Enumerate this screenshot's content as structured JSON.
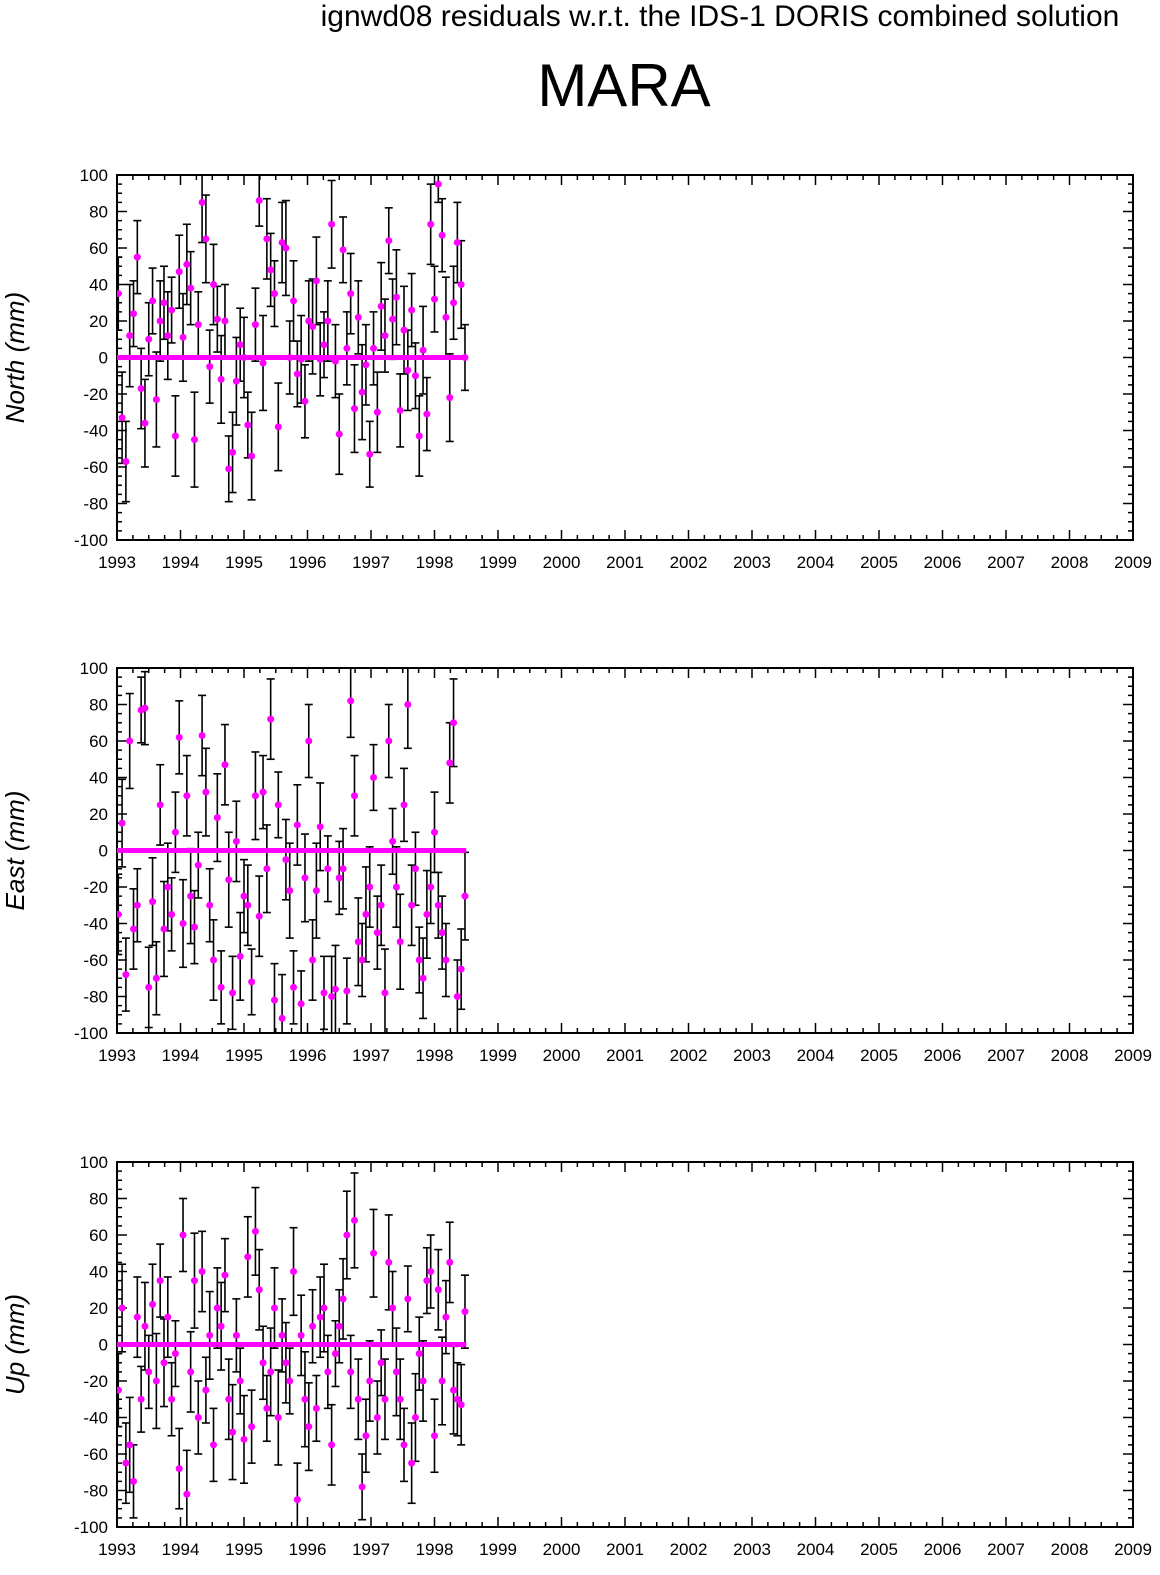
{
  "figure": {
    "title": "ignwd08 residuals w.r.t. the IDS-1 DORIS combined solution",
    "station": "MARA"
  },
  "colors": {
    "points": "#ff00ff",
    "errorbars": "#000000",
    "frame": "#000000"
  },
  "chart_data": [
    {
      "type": "scatter",
      "ylabel": "North (mm)",
      "xlim": [
        1993,
        2009
      ],
      "ylim": [
        -100,
        100
      ],
      "x_ticks": [
        "1993",
        "1994",
        "1995",
        "1996",
        "1997",
        "1998",
        "1999",
        "2000",
        "2001",
        "2002",
        "2003",
        "2004",
        "2005",
        "2006",
        "2007",
        "2008",
        "2009"
      ],
      "y_ticks": [
        "100",
        "80",
        "60",
        "40",
        "20",
        "0",
        "-20",
        "-40",
        "-60",
        "-80",
        "-100"
      ],
      "grid": false,
      "zero_line": {
        "x": [
          1993.0,
          1998.5
        ],
        "y": 0
      },
      "series": [
        {
          "x": [
            1993.02,
            1993.08,
            1993.14,
            1993.2,
            1993.26,
            1993.32,
            1993.38,
            1993.44,
            1993.5,
            1993.56,
            1993.62,
            1993.68,
            1993.74,
            1993.8,
            1993.86,
            1993.92,
            1993.98,
            1994.04,
            1994.1,
            1994.16,
            1994.22,
            1994.28,
            1994.34,
            1994.4,
            1994.46,
            1994.52,
            1994.58,
            1994.64,
            1994.7,
            1994.76,
            1994.82,
            1994.88,
            1994.94,
            1995.0,
            1995.06,
            1995.12,
            1995.18,
            1995.24,
            1995.3,
            1995.36,
            1995.42,
            1995.48,
            1995.54,
            1995.6,
            1995.66,
            1995.72,
            1995.78,
            1995.84,
            1995.9,
            1995.96,
            1996.02,
            1996.08,
            1996.14,
            1996.2,
            1996.26,
            1996.32,
            1996.38,
            1996.44,
            1996.5,
            1996.56,
            1996.62,
            1996.68,
            1996.74,
            1996.8,
            1996.86,
            1996.92,
            1996.98,
            1997.04,
            1997.1,
            1997.16,
            1997.22,
            1997.28,
            1997.34,
            1997.4,
            1997.46,
            1997.52,
            1997.58,
            1997.64,
            1997.7,
            1997.76,
            1997.82,
            1997.88,
            1997.94,
            1998.0,
            1998.06,
            1998.12,
            1998.18,
            1998.24,
            1998.3,
            1998.36,
            1998.42,
            1998.48
          ],
          "y": [
            35,
            -33,
            -57,
            12,
            24,
            55,
            -17,
            -36,
            10,
            31,
            -23,
            20,
            30,
            12,
            26,
            -43,
            47,
            11,
            51,
            38,
            -45,
            18,
            85,
            65,
            -5,
            40,
            21,
            -12,
            20,
            -61,
            -52,
            -13,
            7,
            0,
            -37,
            -54,
            18,
            86,
            -3,
            65,
            48,
            35,
            -38,
            63,
            60,
            0,
            31,
            -9,
            -1,
            -24,
            20,
            17,
            42,
            -1,
            7,
            20,
            73,
            -2,
            -42,
            59,
            5,
            35,
            -28,
            22,
            -19,
            -4,
            -53,
            5,
            -30,
            28,
            12,
            64,
            21,
            33,
            -29,
            15,
            -7,
            26,
            -10,
            -43,
            4,
            -31,
            73,
            32,
            95,
            67,
            22,
            -22,
            30,
            63,
            40,
            0
          ],
          "err": [
            20,
            25,
            22,
            28,
            18,
            20,
            22,
            24,
            20,
            18,
            26,
            22,
            20,
            24,
            18,
            22,
            20,
            24,
            22,
            20,
            26,
            18,
            22,
            24,
            20,
            22,
            18,
            24,
            20,
            18,
            22,
            24,
            20,
            22,
            18,
            24,
            20,
            14,
            26,
            22,
            20,
            18,
            24,
            22,
            26,
            20,
            22,
            18,
            24,
            20,
            22,
            26,
            24,
            20,
            18,
            22,
            24,
            20,
            22,
            18,
            20,
            22,
            24,
            20,
            26,
            22,
            18,
            20,
            22,
            24,
            20,
            18,
            22,
            26,
            20,
            24,
            22,
            20,
            18,
            22,
            24,
            20,
            22,
            18,
            10,
            20,
            22,
            24,
            20,
            22,
            24,
            18
          ]
        }
      ]
    },
    {
      "type": "scatter",
      "ylabel": "East (mm)",
      "xlim": [
        1993,
        2009
      ],
      "ylim": [
        -100,
        100
      ],
      "x_ticks": [
        "1993",
        "1994",
        "1995",
        "1996",
        "1997",
        "1998",
        "1999",
        "2000",
        "2001",
        "2002",
        "2003",
        "2004",
        "2005",
        "2006",
        "2007",
        "2008",
        "2009"
      ],
      "y_ticks": [
        "100",
        "80",
        "60",
        "40",
        "20",
        "0",
        "-20",
        "-40",
        "-60",
        "-80",
        "-100"
      ],
      "grid": false,
      "zero_line": {
        "x": [
          1993.0,
          1998.5
        ],
        "y": 0
      },
      "series": [
        {
          "x": [
            1993.02,
            1993.08,
            1993.14,
            1993.2,
            1993.26,
            1993.32,
            1993.38,
            1993.44,
            1993.5,
            1993.56,
            1993.62,
            1993.68,
            1993.74,
            1993.8,
            1993.86,
            1993.92,
            1993.98,
            1994.04,
            1994.1,
            1994.16,
            1994.22,
            1994.28,
            1994.34,
            1994.4,
            1994.46,
            1994.52,
            1994.58,
            1994.64,
            1994.7,
            1994.76,
            1994.82,
            1994.88,
            1994.94,
            1995.0,
            1995.06,
            1995.12,
            1995.18,
            1995.24,
            1995.3,
            1995.36,
            1995.42,
            1995.48,
            1995.54,
            1995.6,
            1995.66,
            1995.72,
            1995.78,
            1995.84,
            1995.9,
            1995.96,
            1996.02,
            1996.08,
            1996.14,
            1996.2,
            1996.26,
            1996.32,
            1996.38,
            1996.44,
            1996.5,
            1996.56,
            1996.62,
            1996.68,
            1996.74,
            1996.8,
            1996.86,
            1996.92,
            1996.98,
            1997.04,
            1997.1,
            1997.16,
            1997.22,
            1997.28,
            1997.34,
            1997.4,
            1997.46,
            1997.52,
            1997.58,
            1997.64,
            1997.7,
            1997.76,
            1997.82,
            1997.88,
            1997.94,
            1998.0,
            1998.06,
            1998.12,
            1998.18,
            1998.24,
            1998.3,
            1998.36,
            1998.42,
            1998.48
          ],
          "y": [
            -35,
            15,
            -68,
            60,
            -43,
            -30,
            77,
            78,
            -75,
            -28,
            -70,
            25,
            -43,
            -20,
            -35,
            10,
            62,
            -40,
            30,
            -25,
            -42,
            -8,
            63,
            32,
            -30,
            -60,
            18,
            -75,
            47,
            -16,
            -78,
            5,
            -58,
            -25,
            -30,
            -72,
            30,
            -36,
            32,
            -10,
            72,
            -82,
            25,
            -92,
            -5,
            -22,
            -75,
            14,
            -84,
            -15,
            60,
            -60,
            -22,
            13,
            -78,
            -10,
            -80,
            -76,
            -15,
            -10,
            -77,
            82,
            30,
            -50,
            -60,
            -35,
            -20,
            40,
            -45,
            -30,
            -78,
            60,
            5,
            -20,
            -50,
            25,
            80,
            -30,
            -10,
            -60,
            -70,
            -35,
            -20,
            10,
            -30,
            -45,
            -60,
            48,
            70,
            -80,
            -65,
            -25
          ],
          "err": [
            22,
            24,
            20,
            26,
            22,
            20,
            18,
            20,
            22,
            24,
            20,
            22,
            26,
            24,
            20,
            22,
            20,
            24,
            22,
            26,
            20,
            18,
            22,
            24,
            20,
            22,
            24,
            20,
            22,
            26,
            20,
            22,
            24,
            20,
            22,
            18,
            24,
            22,
            20,
            24,
            22,
            20,
            18,
            24,
            22,
            26,
            20,
            22,
            18,
            24,
            20,
            22,
            26,
            24,
            20,
            18,
            22,
            24,
            20,
            22,
            18,
            20,
            22,
            24,
            20,
            26,
            22,
            18,
            20,
            22,
            24,
            20,
            18,
            22,
            26,
            20,
            24,
            22,
            20,
            18,
            22,
            24,
            20,
            22,
            18,
            20,
            20,
            22,
            24,
            20,
            22,
            24
          ]
        }
      ]
    },
    {
      "type": "scatter",
      "ylabel": "Up (mm)",
      "xlim": [
        1993,
        2009
      ],
      "ylim": [
        -100,
        100
      ],
      "x_ticks": [
        "1993",
        "1994",
        "1995",
        "1996",
        "1997",
        "1998",
        "1999",
        "2000",
        "2001",
        "2002",
        "2003",
        "2004",
        "2005",
        "2006",
        "2007",
        "2008",
        "2009"
      ],
      "y_ticks": [
        "100",
        "80",
        "60",
        "40",
        "20",
        "0",
        "-20",
        "-40",
        "-60",
        "-80",
        "-100"
      ],
      "grid": false,
      "zero_line": {
        "x": [
          1993.0,
          1998.5
        ],
        "y": 0
      },
      "series": [
        {
          "x": [
            1993.02,
            1993.08,
            1993.14,
            1993.2,
            1993.26,
            1993.32,
            1993.38,
            1993.44,
            1993.5,
            1993.56,
            1993.62,
            1993.68,
            1993.74,
            1993.8,
            1993.86,
            1993.92,
            1993.98,
            1994.04,
            1994.1,
            1994.16,
            1994.22,
            1994.28,
            1994.34,
            1994.4,
            1994.46,
            1994.52,
            1994.58,
            1994.64,
            1994.7,
            1994.76,
            1994.82,
            1994.88,
            1994.94,
            1995.0,
            1995.06,
            1995.12,
            1995.18,
            1995.24,
            1995.3,
            1995.36,
            1995.42,
            1995.48,
            1995.54,
            1995.6,
            1995.66,
            1995.72,
            1995.78,
            1995.84,
            1995.9,
            1995.96,
            1996.02,
            1996.08,
            1996.14,
            1996.2,
            1996.26,
            1996.32,
            1996.38,
            1996.44,
            1996.5,
            1996.56,
            1996.62,
            1996.68,
            1996.74,
            1996.8,
            1996.86,
            1996.92,
            1996.98,
            1997.04,
            1997.1,
            1997.16,
            1997.22,
            1997.28,
            1997.34,
            1997.4,
            1997.46,
            1997.52,
            1997.58,
            1997.64,
            1997.7,
            1997.76,
            1997.82,
            1997.88,
            1997.94,
            1998.0,
            1998.06,
            1998.12,
            1998.18,
            1998.24,
            1998.3,
            1998.36,
            1998.42,
            1998.48
          ],
          "y": [
            -25,
            20,
            -65,
            -55,
            -75,
            15,
            -30,
            10,
            -15,
            22,
            -20,
            35,
            -10,
            15,
            -30,
            -5,
            -68,
            60,
            -82,
            -15,
            35,
            -40,
            40,
            -25,
            5,
            -55,
            20,
            10,
            38,
            -30,
            -48,
            5,
            -20,
            -52,
            48,
            -45,
            62,
            30,
            -10,
            -35,
            -15,
            20,
            -40,
            5,
            -10,
            -20,
            40,
            -85,
            5,
            -30,
            -45,
            10,
            -35,
            15,
            20,
            -15,
            -55,
            -5,
            10,
            25,
            60,
            -15,
            68,
            -30,
            -78,
            -50,
            -20,
            50,
            -40,
            -10,
            -30,
            45,
            20,
            -15,
            -30,
            -55,
            25,
            -65,
            -40,
            -5,
            -20,
            35,
            40,
            -50,
            30,
            -20,
            15,
            45,
            -25,
            -30,
            -33,
            18
          ],
          "err": [
            20,
            24,
            22,
            26,
            20,
            22,
            18,
            24,
            20,
            22,
            26,
            20,
            24,
            22,
            20,
            18,
            22,
            20,
            24,
            22,
            26,
            20,
            22,
            18,
            24,
            20,
            22,
            24,
            20,
            22,
            26,
            20,
            18,
            24,
            22,
            20,
            24,
            22,
            20,
            18,
            24,
            22,
            26,
            20,
            22,
            18,
            24,
            20,
            22,
            26,
            24,
            20,
            18,
            22,
            24,
            20,
            22,
            18,
            20,
            22,
            24,
            20,
            26,
            22,
            18,
            20,
            22,
            24,
            20,
            18,
            22,
            26,
            20,
            24,
            22,
            20,
            18,
            22,
            24,
            20,
            22,
            18,
            20,
            20,
            22,
            24,
            20,
            22,
            24,
            20,
            22,
            20
          ]
        }
      ]
    }
  ]
}
